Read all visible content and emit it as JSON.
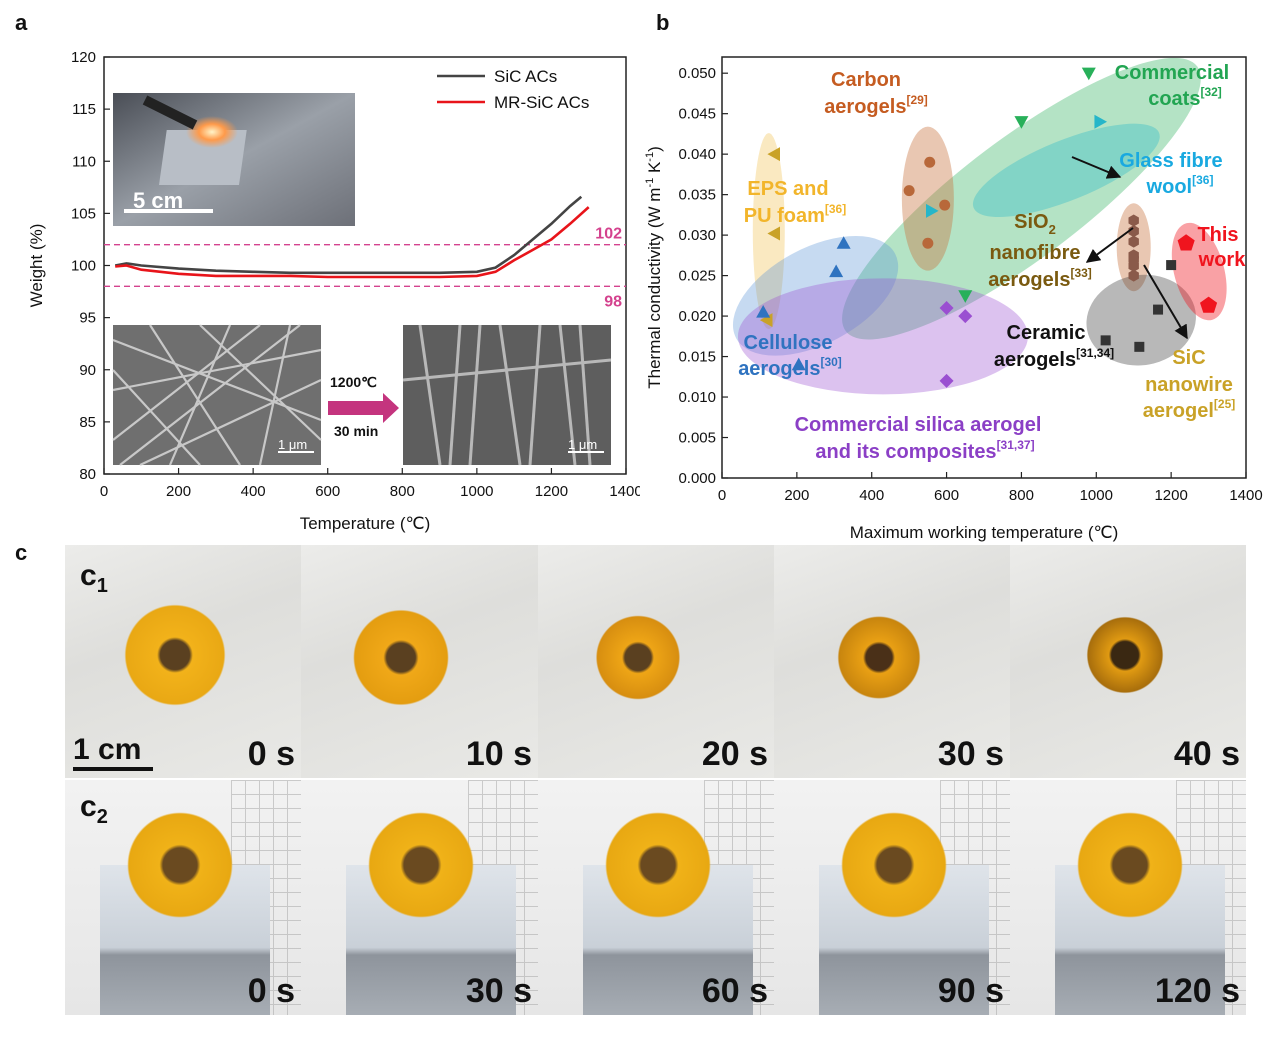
{
  "panel_labels": {
    "a": "a",
    "b": "b",
    "c": "c"
  },
  "chart_data": [
    {
      "id": "a",
      "type": "line",
      "xlabel": "Temperature (℃)",
      "ylabel": "Weight (%)",
      "xlim": [
        0,
        1400
      ],
      "ylim": [
        80,
        120
      ],
      "xticks": [
        "0",
        "200",
        "400",
        "600",
        "800",
        "1000",
        "1200",
        "1400"
      ],
      "yticks": [
        "80",
        "85",
        "90",
        "95",
        "100",
        "105",
        "110",
        "115",
        "120"
      ],
      "legend_position": "top-right",
      "series": [
        {
          "name": "SiC ACs",
          "color": "#444444",
          "x": [
            30,
            60,
            100,
            200,
            300,
            400,
            500,
            600,
            700,
            800,
            900,
            1000,
            1050,
            1100,
            1150,
            1200,
            1250,
            1280
          ],
          "y": [
            100.0,
            100.2,
            100.0,
            99.7,
            99.5,
            99.4,
            99.3,
            99.3,
            99.3,
            99.3,
            99.3,
            99.4,
            99.8,
            101.0,
            102.5,
            104.0,
            105.7,
            106.6
          ]
        },
        {
          "name": "MR-SiC ACs",
          "color": "#e8141a",
          "x": [
            30,
            60,
            100,
            200,
            300,
            400,
            500,
            600,
            700,
            800,
            900,
            1000,
            1050,
            1100,
            1150,
            1200,
            1250,
            1300
          ],
          "y": [
            99.9,
            100.0,
            99.6,
            99.2,
            99.0,
            99.0,
            99.0,
            98.9,
            98.9,
            98.9,
            98.9,
            99.0,
            99.4,
            100.5,
            101.5,
            102.5,
            104.0,
            105.6
          ]
        }
      ],
      "hlines": [
        {
          "y": 102,
          "label": "102",
          "color": "#d4428e"
        },
        {
          "y": 98,
          "label": "98",
          "color": "#d4428e"
        }
      ],
      "inset_labels": {
        "scale_photo": "5 cm",
        "sem_scale_left": "1 μm",
        "sem_scale_right": "1 μm",
        "arrow_line1": "1200℃",
        "arrow_line2": "30 min"
      }
    },
    {
      "id": "b",
      "type": "scatter",
      "xlabel": "Maximum working temperature (℃)",
      "ylabel_main": "Thermal conductivity (W m",
      "ylabel_sup1": "-1",
      "ylabel_mid": " K",
      "ylabel_sup2": "-1",
      "ylabel_end": ")",
      "xlim": [
        0,
        1400
      ],
      "ylim": [
        0,
        0.052
      ],
      "xticks": [
        "0",
        "200",
        "400",
        "600",
        "800",
        "1000",
        "1200",
        "1400"
      ],
      "yticks": [
        "0.000",
        "0.005",
        "0.010",
        "0.015",
        "0.020",
        "0.025",
        "0.030",
        "0.035",
        "0.040",
        "0.045",
        "0.050"
      ],
      "groups": [
        {
          "name": "EPS and PU foam",
          "ref": "[36]",
          "color": "#c9a227",
          "text_color": "#f2b52b",
          "marker": "triangle-left",
          "points": [
            [
              140,
              0.04
            ],
            [
              140,
              0.0302
            ],
            [
              120,
              0.0195
            ]
          ]
        },
        {
          "name": "Cellulose aerogels",
          "ref": "[30]",
          "color": "#2f73c0",
          "text_color": "#2f73c0",
          "marker": "triangle-up",
          "points": [
            [
              325,
              0.029
            ],
            [
              305,
              0.0255
            ],
            [
              110,
              0.0205
            ],
            [
              205,
              0.014
            ]
          ]
        },
        {
          "name": "Carbon aerogels",
          "ref": "[29]",
          "color": "#b8683a",
          "text_color": "#c55c21",
          "marker": "circle",
          "points": [
            [
              555,
              0.039
            ],
            [
              500,
              0.0355
            ],
            [
              595,
              0.0337
            ],
            [
              550,
              0.029
            ]
          ]
        },
        {
          "name": "Commercial coats",
          "ref": "[32]",
          "color": "#28b05a",
          "text_color": "#22a552",
          "marker": "triangle-down",
          "points": [
            [
              980,
              0.05
            ],
            [
              800,
              0.044
            ],
            [
              650,
              0.0225
            ]
          ]
        },
        {
          "name": "Glass fibre wool",
          "ref": "[36]",
          "color": "#26b6c9",
          "text_color": "#19a9e0",
          "marker": "triangle-right",
          "points": [
            [
              1010,
              0.044
            ],
            [
              560,
              0.033
            ]
          ]
        },
        {
          "name": "SiO₂ nanofibre aerogels",
          "ref": "[33]",
          "color": "#8a5a4a",
          "text_color": "#7a5a10",
          "marker": "hexagon",
          "points": [
            [
              1100,
              0.0318
            ],
            [
              1100,
              0.0305
            ],
            [
              1100,
              0.0292
            ],
            [
              1100,
              0.0275
            ],
            [
              1100,
              0.027
            ],
            [
              1100,
              0.0262
            ],
            [
              1100,
              0.025
            ]
          ]
        },
        {
          "name": "Ceramic aerogels",
          "ref": "[31,34]",
          "color": "#333333",
          "text_color": "#111111",
          "marker": "square",
          "points": [
            [
              1200,
              0.0263
            ],
            [
              1165,
              0.0208
            ],
            [
              1025,
              0.017
            ],
            [
              1115,
              0.0162
            ]
          ]
        },
        {
          "name": "Commercial silica aerogel and its composites",
          "ref": "[31,37]",
          "color": "#9a4fd1",
          "text_color": "#8b3fc6",
          "marker": "diamond",
          "points": [
            [
              600,
              0.021
            ],
            [
              650,
              0.02
            ],
            [
              600,
              0.012
            ]
          ]
        },
        {
          "name": "This work",
          "ref": "",
          "color": "#f0141e",
          "text_color": "#f0141e",
          "marker": "pentagon",
          "points": [
            [
              1240,
              0.029
            ],
            [
              1300,
              0.0213
            ]
          ]
        },
        {
          "name": "SiC nanowire aerogel",
          "ref": "[25]",
          "color": "#c9a227",
          "text_color": "#c9a227",
          "marker": "none",
          "points": []
        }
      ],
      "labels": {
        "eps1": "EPS and",
        "eps2": "PU foam",
        "eps_ref": "[36]",
        "carbon1": "Carbon",
        "carbon2": "aerogels",
        "carbon_ref": "[29]",
        "coats1": "Commercial",
        "coats2": "coats",
        "coats_ref": "[32]",
        "glass1": "Glass fibre",
        "glass2": "wool",
        "glass_ref": "[36]",
        "sio1": "SiO",
        "sio_sub": "2",
        "sio2": "nanofibre",
        "sio3": "aerogels",
        "sio_ref": "[33]",
        "this1": "This",
        "this2": "work",
        "cell1": "Cellulose",
        "cell2": "aerogels",
        "cell_ref": "[30]",
        "ceramic1": "Ceramic",
        "ceramic2": "aerogels",
        "ceramic_ref": "[31,34]",
        "sic1": "SiC",
        "sic2": "nanowire",
        "sic3": "aerogel",
        "sic_ref": "[25]",
        "silica1": "Commercial silica aerogel",
        "silica2": "and its composites",
        "silica_ref": "[31,37]"
      }
    }
  ],
  "panel_c": {
    "row1_label": "c",
    "row1_sub": "1",
    "row2_label": "c",
    "row2_sub": "2",
    "scale_bar": "1 cm",
    "row1_times": [
      "0 s",
      "10 s",
      "20 s",
      "30 s",
      "40 s"
    ],
    "row2_times": [
      "0 s",
      "30 s",
      "60 s",
      "90 s",
      "120 s"
    ]
  }
}
